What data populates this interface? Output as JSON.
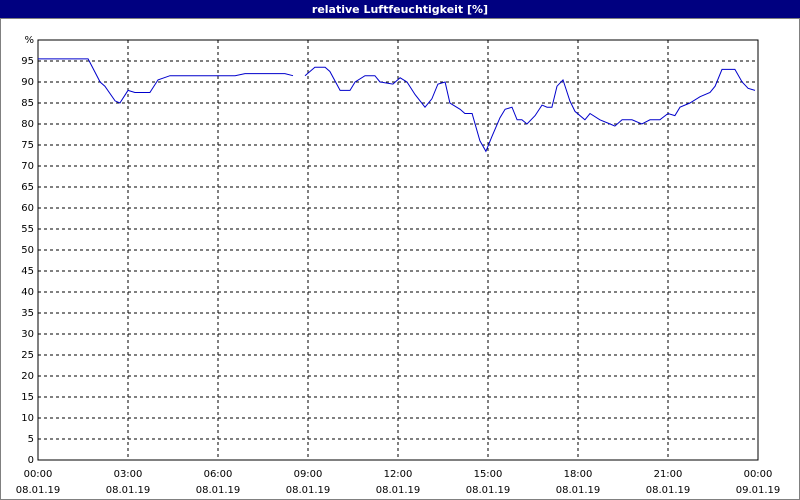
{
  "chart_data": {
    "type": "line",
    "title": "relative Luftfeuchtigkeit [%]",
    "xlim": [
      0,
      24
    ],
    "xticks": [
      {
        "value": 0,
        "label": "00:00"
      },
      {
        "value": 3,
        "label": "03:00"
      },
      {
        "value": 6,
        "label": "06:00"
      },
      {
        "value": 9,
        "label": "09:00"
      },
      {
        "value": 12,
        "label": "12:00"
      },
      {
        "value": 15,
        "label": "15:00"
      },
      {
        "value": 18,
        "label": "18:00"
      },
      {
        "value": 21,
        "label": "21:00"
      },
      {
        "value": 24,
        "label": "00:00"
      }
    ],
    "xtick_dates": [
      "08.01.19",
      "08.01.19",
      "08.01.19",
      "08.01.19",
      "08.01.19",
      "08.01.19",
      "08.01.19",
      "08.01.19",
      "09.01.19"
    ],
    "ylim": [
      0,
      100
    ],
    "yticks": [
      0,
      5,
      10,
      15,
      20,
      25,
      30,
      35,
      40,
      45,
      50,
      55,
      60,
      65,
      70,
      75,
      80,
      85,
      90,
      95,
      {
        "value": 100,
        "label": "%"
      }
    ],
    "grid": true,
    "series": [
      {
        "name": "relative Luftfeuchtigkeit",
        "color": "#0000cc",
        "x": [
          0,
          1.67,
          2.07,
          2.23,
          2.57,
          2.73,
          3,
          3.23,
          3.73,
          4,
          4.4,
          6.57,
          6.9,
          8.23,
          8.5,
          8.7,
          8.9,
          9.23,
          9.57,
          9.73,
          10.07,
          10.4,
          10.57,
          10.9,
          11.23,
          11.4,
          11.83,
          12.07,
          12.3,
          12.57,
          12.9,
          13.13,
          13.33,
          13.57,
          13.73,
          14.07,
          14.23,
          14.47,
          14.73,
          14.93,
          15.13,
          15.4,
          15.57,
          15.8,
          15.97,
          16.13,
          16.3,
          16.57,
          16.8,
          16.97,
          17.13,
          17.3,
          17.5,
          17.73,
          17.9,
          18.23,
          18.4,
          18.73,
          19.07,
          19.23,
          19.47,
          19.8,
          19.97,
          20.13,
          20.4,
          20.73,
          21,
          21.23,
          21.4,
          21.73,
          22.07,
          22.4,
          22.57,
          22.8,
          23.23,
          23.47,
          23.67,
          23.9
        ],
        "values": [
          95.5,
          95.5,
          90,
          89,
          85.5,
          85,
          88,
          87.5,
          87.5,
          90.5,
          91.5,
          91.5,
          92,
          92,
          91.5,
          null,
          91.5,
          93.5,
          93.5,
          92.5,
          88,
          88,
          90,
          91.5,
          91.5,
          90,
          89.5,
          91,
          90,
          87,
          84,
          86,
          89.5,
          90,
          85,
          83.5,
          82.5,
          82.5,
          76,
          73.5,
          77,
          81.5,
          83.5,
          84,
          81,
          81,
          80,
          82,
          84.5,
          84,
          84,
          89,
          90.5,
          85.5,
          83,
          81,
          82.5,
          81,
          80,
          79.5,
          81,
          81,
          80.5,
          80,
          81,
          81,
          82.5,
          82,
          84,
          85,
          86.5,
          87.5,
          89,
          93,
          93,
          90,
          88.5,
          88
        ]
      }
    ]
  }
}
